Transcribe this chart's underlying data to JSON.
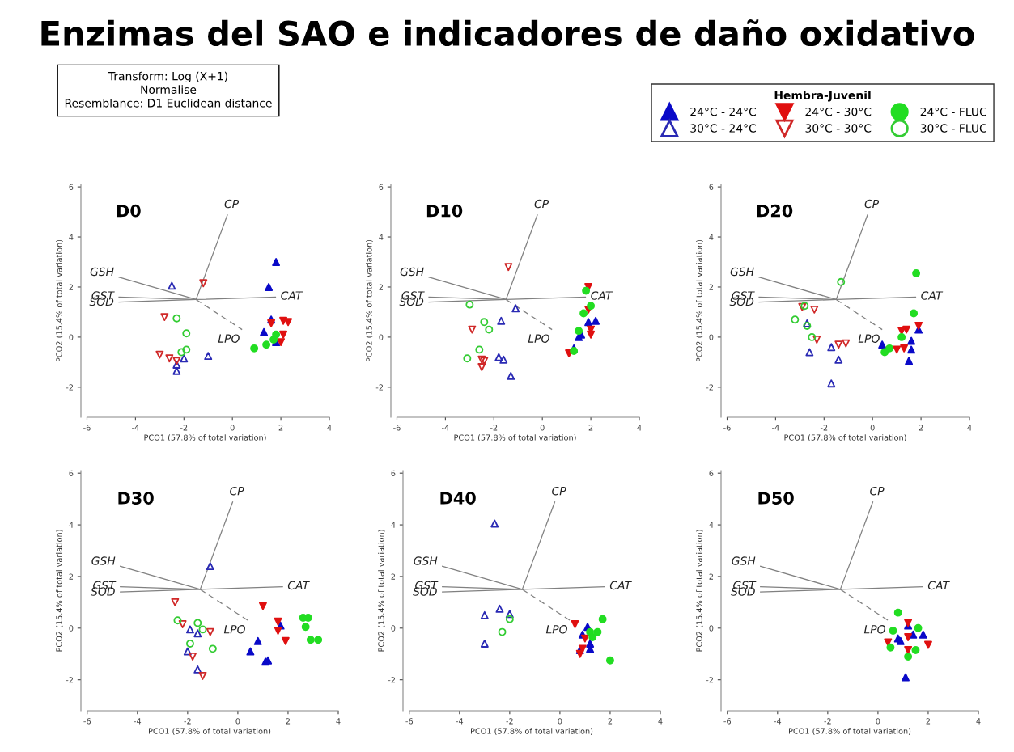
{
  "chart_data": [
    {
      "type": "scatter",
      "title": "D0",
      "xlabel": "PCO1 (57.8% of total variation)",
      "ylabel": "PCO2 (15.4% of total variation)",
      "xlim": [
        -6.25,
        4
      ],
      "ylim": [
        -3.2,
        6.1
      ],
      "xticks": [
        -6,
        -4,
        -2,
        0,
        2,
        4
      ],
      "yticks": [
        -2,
        0,
        2,
        4,
        6
      ],
      "legend": "top right",
      "legend_title": "Hembra-Juvenil",
      "annotations": [
        "Enzimas del SAO e indicadores de daño oxidativo",
        "Transform: Log (X+1)\nNormalise\nResemblance: D1 Euclidean distance",
        {
          "text": "CP",
          "x": -0.2,
          "y": 4.9
        },
        {
          "text": "GSH",
          "x": -4.7,
          "y": 2.4
        },
        {
          "text": "GST",
          "x": -4.7,
          "y": 1.6
        },
        {
          "text": "SOD",
          "x": -4.7,
          "y": 1.4
        },
        {
          "text": "CAT",
          "x": 1.8,
          "y": 1.6
        },
        {
          "text": "LPO",
          "x": 0.4,
          "y": 0.3
        }
      ],
      "series": [
        {
          "type": "line",
          "color": "#808080",
          "line_style": "solid",
          "x": [
            -4.7,
            -1.5,
            1.8
          ],
          "values": [
            1.4,
            1.5,
            1.6
          ]
        },
        {
          "type": "line",
          "color": "#808080",
          "line_style": "solid",
          "x": [
            -1.5,
            -0.2
          ],
          "values": [
            1.5,
            4.9
          ]
        },
        {
          "type": "line",
          "color": "#808080",
          "line_style": "solid",
          "x": [
            -1.5,
            -4.7
          ],
          "values": [
            1.5,
            2.4
          ]
        },
        {
          "type": "line",
          "color": "#808080",
          "line_style": "solid",
          "x": [
            -1.5,
            -4.7
          ],
          "values": [
            1.5,
            1.6
          ]
        },
        {
          "type": "line",
          "color": "#808080",
          "line_style": "dashed",
          "x": [
            -1.5,
            0.4
          ],
          "values": [
            1.5,
            0.3
          ]
        },
        {
          "name": "24°C - 24°C",
          "color": "#0a0ac8",
          "marker": "triangle",
          "x": [
            1.8,
            1.5,
            1.6,
            1.3,
            1.8
          ],
          "values": [
            3.0,
            2.0,
            0.7,
            0.2,
            -0.2
          ]
        },
        {
          "name": "30°C - 24°C",
          "color": "#2a2ab4",
          "marker": "triangle-open",
          "x": [
            -2.5,
            -1.0,
            -2.0,
            -2.3,
            -2.3
          ],
          "values": [
            2.05,
            -0.75,
            -0.85,
            -1.1,
            -1.35
          ]
        },
        {
          "name": "24°C - 30°C",
          "color": "#e01010",
          "marker": "triangle-down",
          "x": [
            1.6,
            2.1,
            2.3,
            2.1,
            2.0
          ],
          "values": [
            0.55,
            0.65,
            0.6,
            0.1,
            -0.2
          ]
        },
        {
          "name": "30°C - 30°C",
          "color": "#d02828",
          "marker": "triangle-down-open",
          "x": [
            -1.2,
            -2.8,
            -3.0,
            -2.6,
            -2.3
          ],
          "values": [
            2.15,
            0.8,
            -0.7,
            -0.85,
            -0.95
          ]
        },
        {
          "name": "24°C - FLUC",
          "color": "#22dd22",
          "marker": "circle",
          "x": [
            0.9,
            1.4,
            1.7,
            1.8
          ],
          "values": [
            -0.45,
            -0.3,
            -0.1,
            0.1
          ]
        },
        {
          "name": "30°C - FLUC",
          "color": "#33cc33",
          "marker": "circle-open",
          "x": [
            -2.3,
            -1.9,
            -1.9,
            -2.1
          ],
          "values": [
            0.75,
            0.15,
            -0.5,
            -0.6
          ]
        }
      ]
    },
    {
      "type": "scatter",
      "title": "D10",
      "xlabel": "PCO1 (57.8% of total variation)",
      "ylabel": "PCO2 (15.4% of total variation)",
      "xlim": [
        -6.25,
        4
      ],
      "ylim": [
        -3.2,
        6.1
      ],
      "xticks": [
        -6,
        -4,
        -2,
        0,
        2,
        4
      ],
      "yticks": [
        -2,
        0,
        2,
        4,
        6
      ],
      "annotations": [
        {
          "text": "CP",
          "x": -0.2,
          "y": 4.9
        },
        {
          "text": "GSH",
          "x": -4.7,
          "y": 2.4
        },
        {
          "text": "GST",
          "x": -4.7,
          "y": 1.6
        },
        {
          "text": "SOD",
          "x": -4.7,
          "y": 1.4
        },
        {
          "text": "CAT",
          "x": 1.8,
          "y": 1.6
        },
        {
          "text": "LPO",
          "x": 0.4,
          "y": 0.3
        }
      ],
      "series": [
        {
          "type": "line",
          "color": "#808080",
          "line_style": "solid",
          "x": [
            -4.7,
            -1.5,
            1.8
          ],
          "values": [
            1.4,
            1.5,
            1.6
          ]
        },
        {
          "type": "line",
          "color": "#808080",
          "line_style": "solid",
          "x": [
            -1.5,
            -0.2
          ],
          "values": [
            1.5,
            4.9
          ]
        },
        {
          "type": "line",
          "color": "#808080",
          "line_style": "solid",
          "x": [
            -1.5,
            -4.7
          ],
          "values": [
            1.5,
            2.4
          ]
        },
        {
          "type": "line",
          "color": "#808080",
          "line_style": "solid",
          "x": [
            -1.5,
            -4.7
          ],
          "values": [
            1.5,
            1.6
          ]
        },
        {
          "type": "line",
          "color": "#808080",
          "line_style": "dashed",
          "x": [
            -1.5,
            0.4
          ],
          "values": [
            1.5,
            0.3
          ]
        },
        {
          "color": "#0a0ac8",
          "marker": "triangle",
          "x": [
            1.9,
            2.2,
            1.6,
            1.5,
            1.3
          ],
          "values": [
            0.6,
            0.65,
            0.1,
            0.0,
            -0.45
          ]
        },
        {
          "color": "#2a2ab4",
          "marker": "triangle-open",
          "x": [
            -1.1,
            -1.7,
            -1.8,
            -1.6,
            -1.3
          ],
          "values": [
            1.15,
            0.65,
            -0.8,
            -0.9,
            -1.55
          ]
        },
        {
          "color": "#e01010",
          "marker": "triangle-down",
          "x": [
            1.9,
            1.9,
            2.0,
            2.0,
            1.1
          ],
          "values": [
            2.0,
            1.1,
            0.3,
            0.1,
            -0.65
          ]
        },
        {
          "color": "#d02828",
          "marker": "triangle-down-open",
          "x": [
            -1.4,
            -2.9,
            -2.5,
            -2.4,
            -2.5
          ],
          "values": [
            2.8,
            0.3,
            -0.9,
            -0.95,
            -1.2
          ]
        },
        {
          "color": "#22dd22",
          "marker": "circle",
          "x": [
            1.8,
            2.0,
            1.7,
            1.5,
            1.3
          ],
          "values": [
            1.85,
            1.25,
            0.95,
            0.25,
            -0.55
          ]
        },
        {
          "color": "#33cc33",
          "marker": "circle-open",
          "x": [
            -3.0,
            -2.4,
            -2.2,
            -2.6,
            -3.1
          ],
          "values": [
            1.3,
            0.6,
            0.3,
            -0.5,
            -0.85
          ]
        }
      ]
    },
    {
      "type": "scatter",
      "title": "D20",
      "xlabel": "PCO1 (57.8% of total variation)",
      "ylabel": "PCO2 (15.4% of total variation)",
      "xlim": [
        -6.25,
        4
      ],
      "ylim": [
        -3.2,
        6.1
      ],
      "xticks": [
        -6,
        -4,
        -2,
        0,
        2,
        4
      ],
      "yticks": [
        -2,
        0,
        2,
        4,
        6
      ],
      "annotations": [
        {
          "text": "CP",
          "x": -0.2,
          "y": 4.9
        },
        {
          "text": "GSH",
          "x": -4.7,
          "y": 2.4
        },
        {
          "text": "GST",
          "x": -4.7,
          "y": 1.6
        },
        {
          "text": "SOD",
          "x": -4.7,
          "y": 1.4
        },
        {
          "text": "CAT",
          "x": 1.8,
          "y": 1.6
        },
        {
          "text": "LPO",
          "x": 0.4,
          "y": 0.3
        }
      ],
      "series": [
        {
          "type": "line",
          "color": "#808080",
          "line_style": "solid",
          "x": [
            -4.7,
            -1.5,
            1.8
          ],
          "values": [
            1.4,
            1.5,
            1.6
          ]
        },
        {
          "type": "line",
          "color": "#808080",
          "line_style": "solid",
          "x": [
            -1.5,
            -0.2
          ],
          "values": [
            1.5,
            4.9
          ]
        },
        {
          "type": "line",
          "color": "#808080",
          "line_style": "solid",
          "x": [
            -1.5,
            -4.7
          ],
          "values": [
            1.5,
            2.4
          ]
        },
        {
          "type": "line",
          "color": "#808080",
          "line_style": "solid",
          "x": [
            -1.5,
            -4.7
          ],
          "values": [
            1.5,
            1.6
          ]
        },
        {
          "type": "line",
          "color": "#808080",
          "line_style": "dashed",
          "x": [
            -1.5,
            0.4
          ],
          "values": [
            1.5,
            0.3
          ]
        },
        {
          "color": "#0a0ac8",
          "marker": "triangle",
          "x": [
            1.9,
            0.4,
            1.6,
            1.6,
            1.5
          ],
          "values": [
            0.3,
            -0.3,
            -0.15,
            -0.5,
            -0.95
          ]
        },
        {
          "color": "#2a2ab4",
          "marker": "triangle-open",
          "x": [
            -2.7,
            -2.6,
            -1.7,
            -1.4,
            -1.7
          ],
          "values": [
            0.55,
            -0.6,
            -0.4,
            -0.9,
            -1.85
          ]
        },
        {
          "color": "#e01010",
          "marker": "triangle-down",
          "x": [
            1.9,
            1.4,
            1.2,
            1.0,
            1.3
          ],
          "values": [
            0.45,
            0.3,
            0.25,
            -0.5,
            -0.45
          ]
        },
        {
          "color": "#d02828",
          "marker": "triangle-down-open",
          "x": [
            -2.9,
            -2.4,
            -2.3,
            -1.4,
            -1.1
          ],
          "values": [
            1.2,
            1.1,
            -0.1,
            -0.3,
            -0.25
          ]
        },
        {
          "color": "#22dd22",
          "marker": "circle",
          "x": [
            1.8,
            1.7,
            1.2,
            0.7,
            0.5
          ],
          "values": [
            2.55,
            0.95,
            0.0,
            -0.45,
            -0.6
          ]
        },
        {
          "color": "#33cc33",
          "marker": "circle-open",
          "x": [
            -1.3,
            -2.8,
            -3.2,
            -2.7,
            -2.5
          ],
          "values": [
            2.2,
            1.25,
            0.7,
            0.45,
            0.0
          ]
        }
      ]
    },
    {
      "type": "scatter",
      "title": "D30",
      "xlabel": "PCO1 (57.8% of total variation)",
      "ylabel": "PCO2 (15.4% of total variation)",
      "xlim": [
        -6.25,
        4
      ],
      "ylim": [
        -3.2,
        6.1
      ],
      "xticks": [
        -6,
        -4,
        -2,
        0,
        2,
        4
      ],
      "yticks": [
        -2,
        0,
        2,
        4,
        6
      ],
      "annotations": [
        {
          "text": "CP",
          "x": -0.2,
          "y": 4.9
        },
        {
          "text": "GSH",
          "x": -4.7,
          "y": 2.4
        },
        {
          "text": "GST",
          "x": -4.7,
          "y": 1.6
        },
        {
          "text": "SOD",
          "x": -4.7,
          "y": 1.4
        },
        {
          "text": "CAT",
          "x": 1.8,
          "y": 1.6
        },
        {
          "text": "LPO",
          "x": 0.4,
          "y": 0.3
        }
      ],
      "series": [
        {
          "type": "line",
          "color": "#808080",
          "line_style": "solid",
          "x": [
            -4.7,
            -1.5,
            1.8
          ],
          "values": [
            1.4,
            1.5,
            1.6
          ]
        },
        {
          "type": "line",
          "color": "#808080",
          "line_style": "solid",
          "x": [
            -1.5,
            -0.2
          ],
          "values": [
            1.5,
            4.9
          ]
        },
        {
          "type": "line",
          "color": "#808080",
          "line_style": "solid",
          "x": [
            -1.5,
            -4.7
          ],
          "values": [
            1.5,
            2.4
          ]
        },
        {
          "type": "line",
          "color": "#808080",
          "line_style": "solid",
          "x": [
            -1.5,
            -4.7
          ],
          "values": [
            1.5,
            1.6
          ]
        },
        {
          "type": "line",
          "color": "#808080",
          "line_style": "dashed",
          "x": [
            -1.5,
            0.4
          ],
          "values": [
            1.5,
            0.3
          ]
        },
        {
          "color": "#0a0ac8",
          "marker": "triangle",
          "x": [
            1.7,
            0.8,
            0.5,
            1.1,
            1.2
          ],
          "values": [
            0.1,
            -0.5,
            -0.9,
            -1.3,
            -1.25
          ]
        },
        {
          "color": "#2a2ab4",
          "marker": "triangle-open",
          "x": [
            -1.1,
            -1.9,
            -1.6,
            -2.0,
            -1.6
          ],
          "values": [
            2.4,
            -0.05,
            -0.2,
            -0.9,
            -1.6
          ]
        },
        {
          "color": "#e01010",
          "marker": "triangle-down",
          "x": [
            1.0,
            1.6,
            1.6,
            1.9
          ],
          "values": [
            0.85,
            0.25,
            -0.1,
            -0.5
          ]
        },
        {
          "color": "#d02828",
          "marker": "triangle-down-open",
          "x": [
            -2.5,
            -2.2,
            -1.1,
            -1.8,
            -1.4
          ],
          "values": [
            1.0,
            0.15,
            -0.15,
            -1.1,
            -1.85
          ]
        },
        {
          "color": "#22dd22",
          "marker": "circle",
          "x": [
            2.6,
            2.8,
            2.7,
            2.9,
            3.2
          ],
          "values": [
            0.4,
            0.4,
            0.05,
            -0.45,
            -0.45
          ]
        },
        {
          "color": "#33cc33",
          "marker": "circle-open",
          "x": [
            -2.4,
            -1.6,
            -1.4,
            -1.9,
            -1.0
          ],
          "values": [
            0.3,
            0.2,
            -0.05,
            -0.6,
            -0.8
          ]
        }
      ]
    },
    {
      "type": "scatter",
      "title": "D40",
      "xlabel": "PCO1 (57.8% of total variation)",
      "ylabel": "PCO2 (15.4% of total variation)",
      "xlim": [
        -6.25,
        4
      ],
      "ylim": [
        -3.2,
        6.1
      ],
      "xticks": [
        -6,
        -4,
        -2,
        0,
        2,
        4
      ],
      "yticks": [
        -2,
        0,
        2,
        4,
        6
      ],
      "annotations": [
        {
          "text": "CP",
          "x": -0.2,
          "y": 4.9
        },
        {
          "text": "GSH",
          "x": -4.7,
          "y": 2.4
        },
        {
          "text": "GST",
          "x": -4.7,
          "y": 1.6
        },
        {
          "text": "SOD",
          "x": -4.7,
          "y": 1.4
        },
        {
          "text": "CAT",
          "x": 1.8,
          "y": 1.6
        },
        {
          "text": "LPO",
          "x": 0.4,
          "y": 0.3
        }
      ],
      "series": [
        {
          "type": "line",
          "color": "#808080",
          "line_style": "solid",
          "x": [
            -4.7,
            -1.5,
            1.8
          ],
          "values": [
            1.4,
            1.5,
            1.6
          ]
        },
        {
          "type": "line",
          "color": "#808080",
          "line_style": "solid",
          "x": [
            -1.5,
            -0.2
          ],
          "values": [
            1.5,
            4.9
          ]
        },
        {
          "type": "line",
          "color": "#808080",
          "line_style": "solid",
          "x": [
            -1.5,
            -4.7
          ],
          "values": [
            1.5,
            2.4
          ]
        },
        {
          "type": "line",
          "color": "#808080",
          "line_style": "solid",
          "x": [
            -1.5,
            -4.7
          ],
          "values": [
            1.5,
            1.6
          ]
        },
        {
          "type": "line",
          "color": "#808080",
          "line_style": "dashed",
          "x": [
            -1.5,
            0.4
          ],
          "values": [
            1.5,
            0.3
          ]
        },
        {
          "color": "#0a0ac8",
          "marker": "triangle",
          "x": [
            1.1,
            0.9,
            1.2,
            1.2,
            0.8
          ],
          "values": [
            0.05,
            -0.25,
            -0.6,
            -0.8,
            -0.85
          ]
        },
        {
          "color": "#2a2ab4",
          "marker": "triangle-open",
          "x": [
            -2.6,
            -2.4,
            -2.0,
            -3.0,
            -3.0
          ],
          "values": [
            4.05,
            0.75,
            0.55,
            0.5,
            -0.6
          ]
        },
        {
          "color": "#e01010",
          "marker": "triangle-down",
          "x": [
            0.6,
            1.0,
            0.9,
            0.8
          ],
          "values": [
            0.15,
            -0.4,
            -0.8,
            -1.0
          ]
        },
        {
          "color": "#22dd22",
          "marker": "circle",
          "x": [
            1.7,
            1.5,
            1.2,
            1.3,
            2.0
          ],
          "values": [
            0.35,
            -0.15,
            -0.15,
            -0.35,
            -1.25
          ]
        },
        {
          "color": "#33cc33",
          "marker": "circle-open",
          "x": [
            -2.0,
            -2.3
          ],
          "values": [
            0.35,
            -0.15
          ]
        }
      ]
    },
    {
      "type": "scatter",
      "title": "D50",
      "xlabel": "PCO1 (57.8% of total variation)",
      "ylabel": "PCO2 (15.4% of total variation)",
      "xlim": [
        -6.25,
        4
      ],
      "ylim": [
        -3.2,
        6.1
      ],
      "xticks": [
        -6,
        -4,
        -2,
        0,
        2,
        4
      ],
      "yticks": [
        -2,
        0,
        2,
        4,
        6
      ],
      "annotations": [
        {
          "text": "CP",
          "x": -0.2,
          "y": 4.9
        },
        {
          "text": "GSH",
          "x": -4.7,
          "y": 2.4
        },
        {
          "text": "GST",
          "x": -4.7,
          "y": 1.6
        },
        {
          "text": "SOD",
          "x": -4.7,
          "y": 1.4
        },
        {
          "text": "CAT",
          "x": 1.8,
          "y": 1.6
        },
        {
          "text": "LPO",
          "x": 0.4,
          "y": 0.3
        }
      ],
      "series": [
        {
          "type": "line",
          "color": "#808080",
          "line_style": "solid",
          "x": [
            -4.7,
            -1.5,
            1.8
          ],
          "values": [
            1.4,
            1.5,
            1.6
          ]
        },
        {
          "type": "line",
          "color": "#808080",
          "line_style": "solid",
          "x": [
            -1.5,
            -0.2
          ],
          "values": [
            1.5,
            4.9
          ]
        },
        {
          "type": "line",
          "color": "#808080",
          "line_style": "solid",
          "x": [
            -1.5,
            -4.7
          ],
          "values": [
            1.5,
            2.4
          ]
        },
        {
          "type": "line",
          "color": "#808080",
          "line_style": "solid",
          "x": [
            -1.5,
            -4.7
          ],
          "values": [
            1.5,
            1.6
          ]
        },
        {
          "type": "line",
          "color": "#808080",
          "line_style": "dashed",
          "x": [
            -1.5,
            0.4
          ],
          "values": [
            1.5,
            0.3
          ]
        },
        {
          "color": "#0a0ac8",
          "marker": "triangle",
          "x": [
            1.2,
            1.4,
            1.8,
            0.8,
            0.9,
            1.1
          ],
          "values": [
            0.1,
            -0.25,
            -0.25,
            -0.4,
            -0.5,
            -1.9
          ]
        },
        {
          "color": "#e01010",
          "marker": "triangle-down",
          "x": [
            1.2,
            0.4,
            1.2,
            1.2,
            2.0
          ],
          "values": [
            0.2,
            -0.55,
            -0.35,
            -0.85,
            -0.65
          ]
        },
        {
          "color": "#22dd22",
          "marker": "circle",
          "x": [
            0.8,
            0.6,
            1.6,
            0.5,
            1.5,
            1.2
          ],
          "values": [
            0.6,
            -0.1,
            0.0,
            -0.75,
            -0.85,
            -1.1
          ]
        }
      ]
    }
  ]
}
